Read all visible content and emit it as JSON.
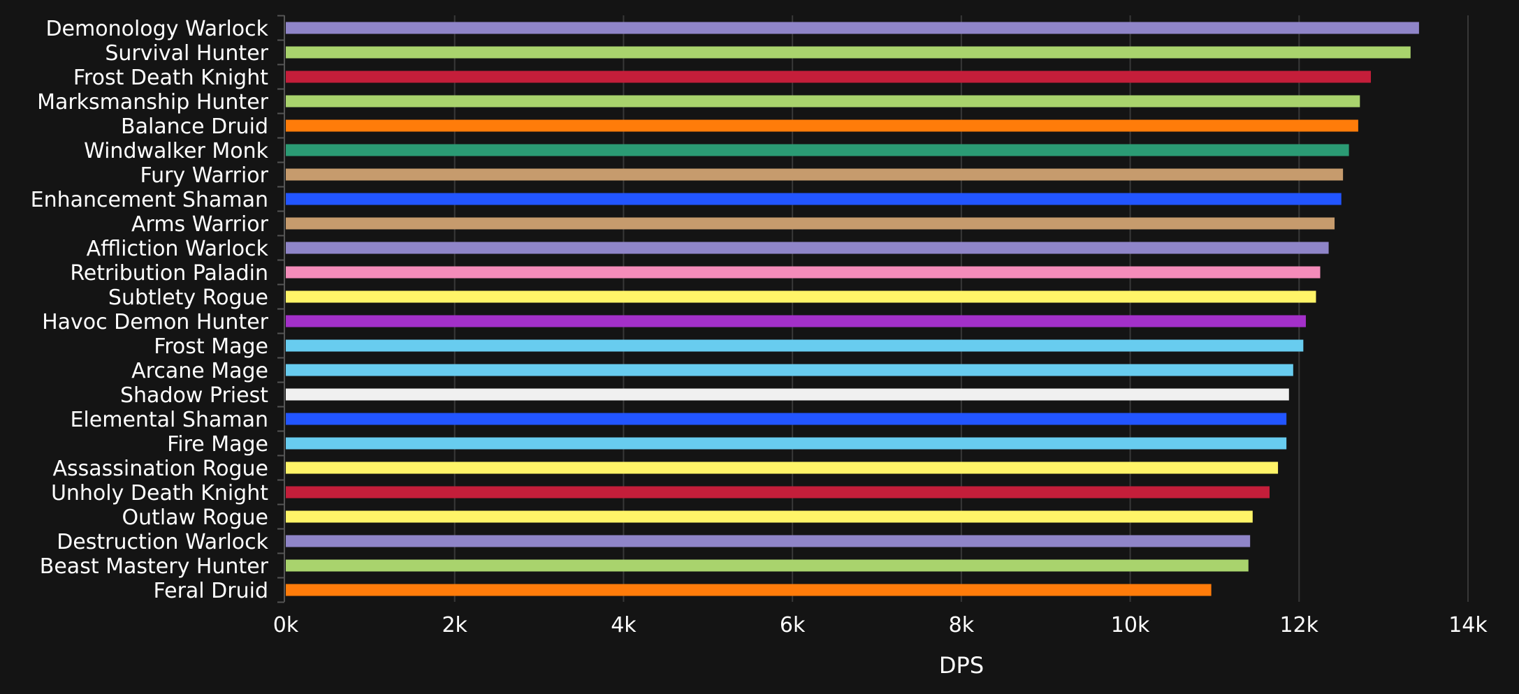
{
  "chart_data": {
    "type": "bar",
    "orientation": "horizontal",
    "xlabel": "DPS",
    "ylabel": "",
    "xlim": [
      0,
      14000
    ],
    "x_ticks": [
      0,
      2000,
      4000,
      6000,
      8000,
      10000,
      12000,
      14000
    ],
    "x_tick_labels": [
      "0k",
      "2k",
      "4k",
      "6k",
      "8k",
      "10k",
      "12k",
      "14k"
    ],
    "grid": true,
    "legend": "none",
    "categories": [
      "Demonology Warlock",
      "Survival Hunter",
      "Frost Death Knight",
      "Marksmanship Hunter",
      "Balance Druid",
      "Windwalker Monk",
      "Fury Warrior",
      "Enhancement Shaman",
      "Arms Warrior",
      "Affliction Warlock",
      "Retribution Paladin",
      "Subtlety Rogue",
      "Havoc Demon Hunter",
      "Frost Mage",
      "Arcane Mage",
      "Shadow Priest",
      "Elemental Shaman",
      "Fire Mage",
      "Assassination Rogue",
      "Unholy Death Knight",
      "Outlaw Rogue",
      "Destruction Warlock",
      "Beast Mastery Hunter",
      "Feral Druid"
    ],
    "values": [
      13420,
      13320,
      12850,
      12720,
      12700,
      12590,
      12520,
      12500,
      12420,
      12350,
      12250,
      12200,
      12080,
      12050,
      11930,
      11880,
      11850,
      11850,
      11750,
      11650,
      11450,
      11420,
      11400,
      10960
    ],
    "colors": [
      "#8f85c8",
      "#a9d36d",
      "#c41e3a",
      "#a9d36d",
      "#ff7c0a",
      "#2b9b74",
      "#c69b6d",
      "#2255ff",
      "#c69b6d",
      "#8f85c8",
      "#f48cba",
      "#fff468",
      "#a330c9",
      "#68ccef",
      "#68ccef",
      "#f0f0f0",
      "#2255ff",
      "#68ccef",
      "#fff468",
      "#c41e3a",
      "#fff468",
      "#8f85c8",
      "#a9d36d",
      "#ff7c0a"
    ]
  }
}
